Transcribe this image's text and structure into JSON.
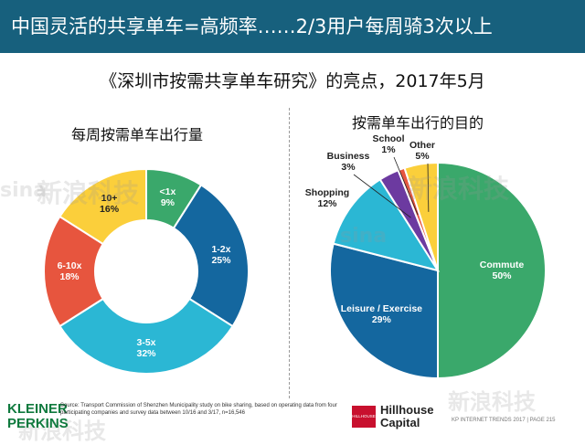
{
  "header": {
    "title": "中国灵活的共享单车=高频率……2/3用户每周骑3次以上"
  },
  "subtitle": "《深圳市按需共享单车研究》的亮点，2017年5月",
  "chart_data": [
    {
      "type": "pie",
      "donut": true,
      "title": "每周按需单车出行量",
      "categories": [
        "<1x",
        "1-2x",
        "3-5x",
        "6-10x",
        "10+"
      ],
      "values": [
        9,
        25,
        32,
        18,
        16
      ],
      "value_labels": [
        "9%",
        "25%",
        "32%",
        "18%",
        "16%"
      ],
      "colors": [
        "#3aa86b",
        "#14679f",
        "#2bb7d4",
        "#e7553e",
        "#fbcf3b"
      ],
      "start": "12 o'clock",
      "direction": "clockwise"
    },
    {
      "type": "pie",
      "donut": true,
      "title": "按需单车出行的目的",
      "categories": [
        "Commute",
        "Leisure / Exercise",
        "Shopping",
        "Business",
        "School",
        "Other"
      ],
      "values": [
        50,
        29,
        12,
        3,
        1,
        5
      ],
      "value_labels": [
        "50%",
        "29%",
        "12%",
        "3%",
        "1%",
        "5%"
      ],
      "colors": [
        "#3aa86b",
        "#14679f",
        "#2bb7d4",
        "#6c3aa0",
        "#e7553e",
        "#fbcf3b"
      ],
      "start": "12 o'clock",
      "direction": "clockwise"
    }
  ],
  "footer": {
    "logo_line1": "KLEINER",
    "logo_line2": "PERKINS",
    "source": "Source: Transport Commission of Shenzhen Municipality study on bike sharing, based on operating data from four participating companies and survey data between 10/16 and 3/17, n=16,546",
    "hillhouse_mark": "HILLHOUSE",
    "hillhouse_line1": "Hillhouse",
    "hillhouse_line2": "Capital",
    "page_ref": "KP INTERNET TRENDS 2017  |  PAGE 215"
  },
  "watermark": {
    "logo": "sina",
    "text": "新浪科技"
  }
}
